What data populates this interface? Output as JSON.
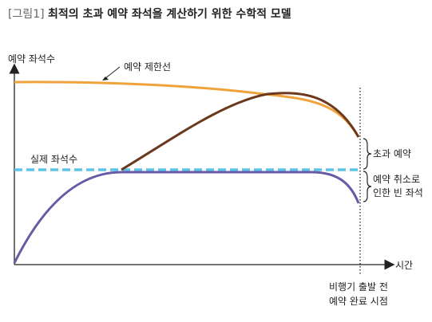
{
  "title_tag": "[그림1]",
  "title_main": "최적의 초과 예약 좌석을 계산하기 위한 수학적 모델",
  "y_axis_label": "예약 좌석수",
  "x_axis_label": "시간",
  "limit_label": "예약 제한선",
  "actual_label": "실제 좌석수",
  "overbook_label": "초과 예약",
  "cancel_label_1": "예약 취소로",
  "cancel_label_2": "인한 빈 좌석",
  "departure_label_1": "비행기 출발 전",
  "departure_label_2": "예약 완료 시점",
  "colors": {
    "limit": "#F0A23C",
    "booked": "#6B3A1E",
    "actual_dashed": "#5BC4E8",
    "actual_curve": "#6A5AA6",
    "axis": "#222222"
  }
}
